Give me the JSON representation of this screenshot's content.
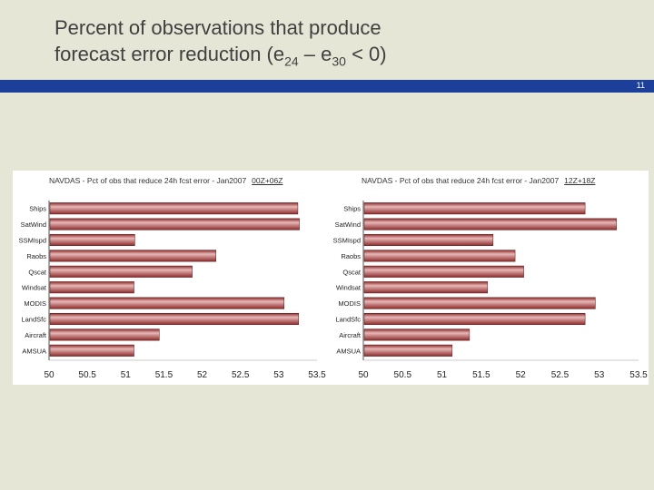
{
  "slide": {
    "title_line1": "Percent of  observations that produce",
    "title_line2_prefix": "forecast error reduction (e",
    "sub1": "24",
    "dash": " – e",
    "sub2": "30",
    "title_line2_suffix": " < 0)",
    "page_number": "11"
  },
  "colors": {
    "bar": "#8b2a2a",
    "bar_highlight": "#e8b8b8",
    "title_bar": "#1c3f9a"
  },
  "chart_data": [
    {
      "type": "bar",
      "orientation": "horizontal",
      "title": "NAVDAS - Pct of obs that reduce 24h fcst error - Jan2007",
      "title_suffix": "00Z+06Z",
      "categories": [
        "Ships",
        "SatWind",
        "SSMIspd",
        "Raobs",
        "Qscat",
        "Windsat",
        "MODIS",
        "LandSfc",
        "Aircraft",
        "AMSUA"
      ],
      "values": [
        53.25,
        53.27,
        51.12,
        52.18,
        51.87,
        51.11,
        53.07,
        53.26,
        51.44,
        51.11
      ],
      "xlim": [
        50,
        53.5
      ],
      "xticks": [
        "50",
        "50.5",
        "51",
        "51.5",
        "52",
        "52.5",
        "53",
        "53.5"
      ]
    },
    {
      "type": "bar",
      "orientation": "horizontal",
      "title": "NAVDAS - Pct of obs that reduce 24h fcst error - Jan2007",
      "title_suffix": "12Z+18Z",
      "categories": [
        "Ships",
        "SatWind",
        "SSMIspd",
        "Raobs",
        "Qscat",
        "Windsat",
        "MODIS",
        "LandSfc",
        "Aircraft",
        "AMSUA"
      ],
      "values": [
        52.82,
        53.22,
        51.65,
        51.93,
        52.04,
        51.58,
        52.95,
        52.82,
        51.35,
        51.13
      ],
      "xlim": [
        50,
        53.5
      ],
      "xticks": [
        "50",
        "50.5",
        "51",
        "51.5",
        "52",
        "52.5",
        "53",
        "53.5"
      ]
    }
  ]
}
